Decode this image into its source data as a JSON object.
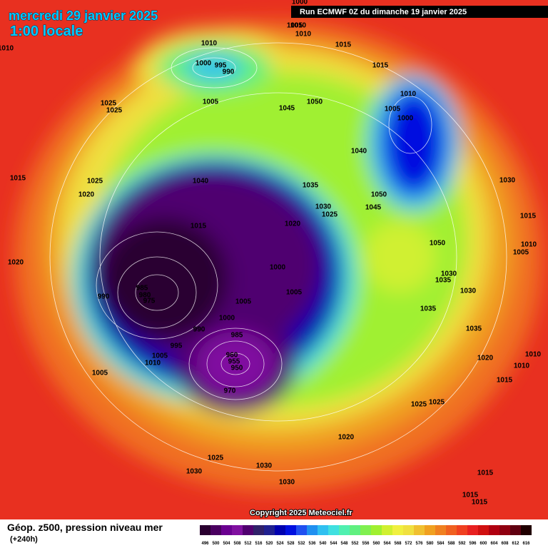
{
  "header": {
    "title": "mercredi 29 janvier 2025",
    "subtitle": "1:00 locale",
    "run": "Run ECMWF 0Z du dimanche 19 janvier 2025"
  },
  "footer": {
    "copyright": "Copyright 2025 Meteociel.fr",
    "field": "Géop. z500, pression niveau mer",
    "lead": "(+240h)"
  },
  "colorbar": {
    "ticks": [
      496,
      500,
      504,
      508,
      512,
      516,
      520,
      524,
      528,
      532,
      536,
      540,
      544,
      548,
      552,
      556,
      560,
      564,
      568,
      572,
      576,
      580,
      584,
      588,
      592,
      596,
      600,
      604,
      608,
      612,
      616
    ],
    "colors": [
      "#2a0030",
      "#4a0060",
      "#6a0090",
      "#8010a0",
      "#500070",
      "#30206a",
      "#202090",
      "#0000b0",
      "#0010e0",
      "#2050f0",
      "#2090f0",
      "#30c0f0",
      "#40e0e0",
      "#50f0b0",
      "#60f080",
      "#80f050",
      "#a0f030",
      "#d0f030",
      "#f0f040",
      "#f0e040",
      "#f0c030",
      "#f0a020",
      "#f08020",
      "#f06020",
      "#f04020",
      "#e82020",
      "#d01010",
      "#b00010",
      "#900010",
      "#600010",
      "#200000"
    ]
  },
  "isobar_labels": [
    "1000",
    "1005",
    "1010",
    "1010",
    "1010",
    "1015",
    "1000",
    "995",
    "990",
    "1015",
    "1005",
    "1045",
    "1050",
    "1010",
    "1005",
    "1000",
    "1025",
    "1025",
    "1040",
    "1015",
    "1025",
    "1040",
    "1035",
    "1030",
    "1020",
    "1050",
    "1030",
    "1025",
    "1045",
    "1015",
    "1015",
    "1020",
    "1050",
    "1010",
    "1005",
    "1020",
    "1000",
    "1030",
    "1035",
    "985",
    "980",
    "975",
    "990",
    "1005",
    "1030",
    "1005",
    "1035",
    "1000",
    "990",
    "985",
    "1035",
    "995",
    "1005",
    "1010",
    "1020",
    "1010",
    "1010",
    "1005",
    "1015",
    "960",
    "955",
    "950",
    "970",
    "1025",
    "1025",
    "1020",
    "1025",
    "1030",
    "1030",
    "1015",
    "1030",
    "1015",
    "1015",
    "1010"
  ]
}
